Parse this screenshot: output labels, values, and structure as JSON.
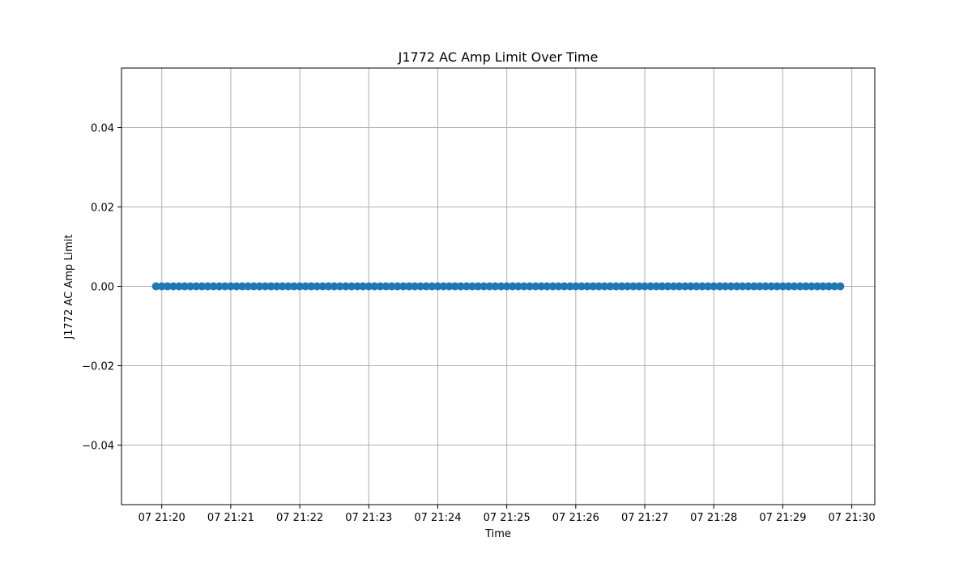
{
  "chart_data": {
    "type": "scatter",
    "title": "J1772 AC Amp Limit Over Time",
    "xlabel": "Time",
    "ylabel": "J1772 AC Amp Limit",
    "xlim": [
      "21:19:25",
      "21:30:20"
    ],
    "ylim": [
      -0.055,
      0.055
    ],
    "x_ticks": [
      "21:20:00",
      "21:21:00",
      "21:22:00",
      "21:23:00",
      "21:24:00",
      "21:25:00",
      "21:26:00",
      "21:27:00",
      "21:28:00",
      "21:29:00",
      "21:30:00"
    ],
    "x_tick_labels": [
      "07 21:20",
      "07 21:21",
      "07 21:22",
      "07 21:23",
      "07 21:24",
      "07 21:25",
      "07 21:26",
      "07 21:27",
      "07 21:28",
      "07 21:29",
      "07 21:30"
    ],
    "y_ticks": [
      -0.04,
      -0.02,
      0.0,
      0.02,
      0.04
    ],
    "y_tick_labels": [
      "−0.04",
      "−0.02",
      "0.00",
      "0.02",
      "0.04"
    ],
    "grid": true,
    "series": [
      {
        "color": "#1f77b4",
        "x_start": "21:19:55",
        "x_end": "21:29:50",
        "x_step_seconds": 5,
        "y": 0.0
      }
    ]
  }
}
